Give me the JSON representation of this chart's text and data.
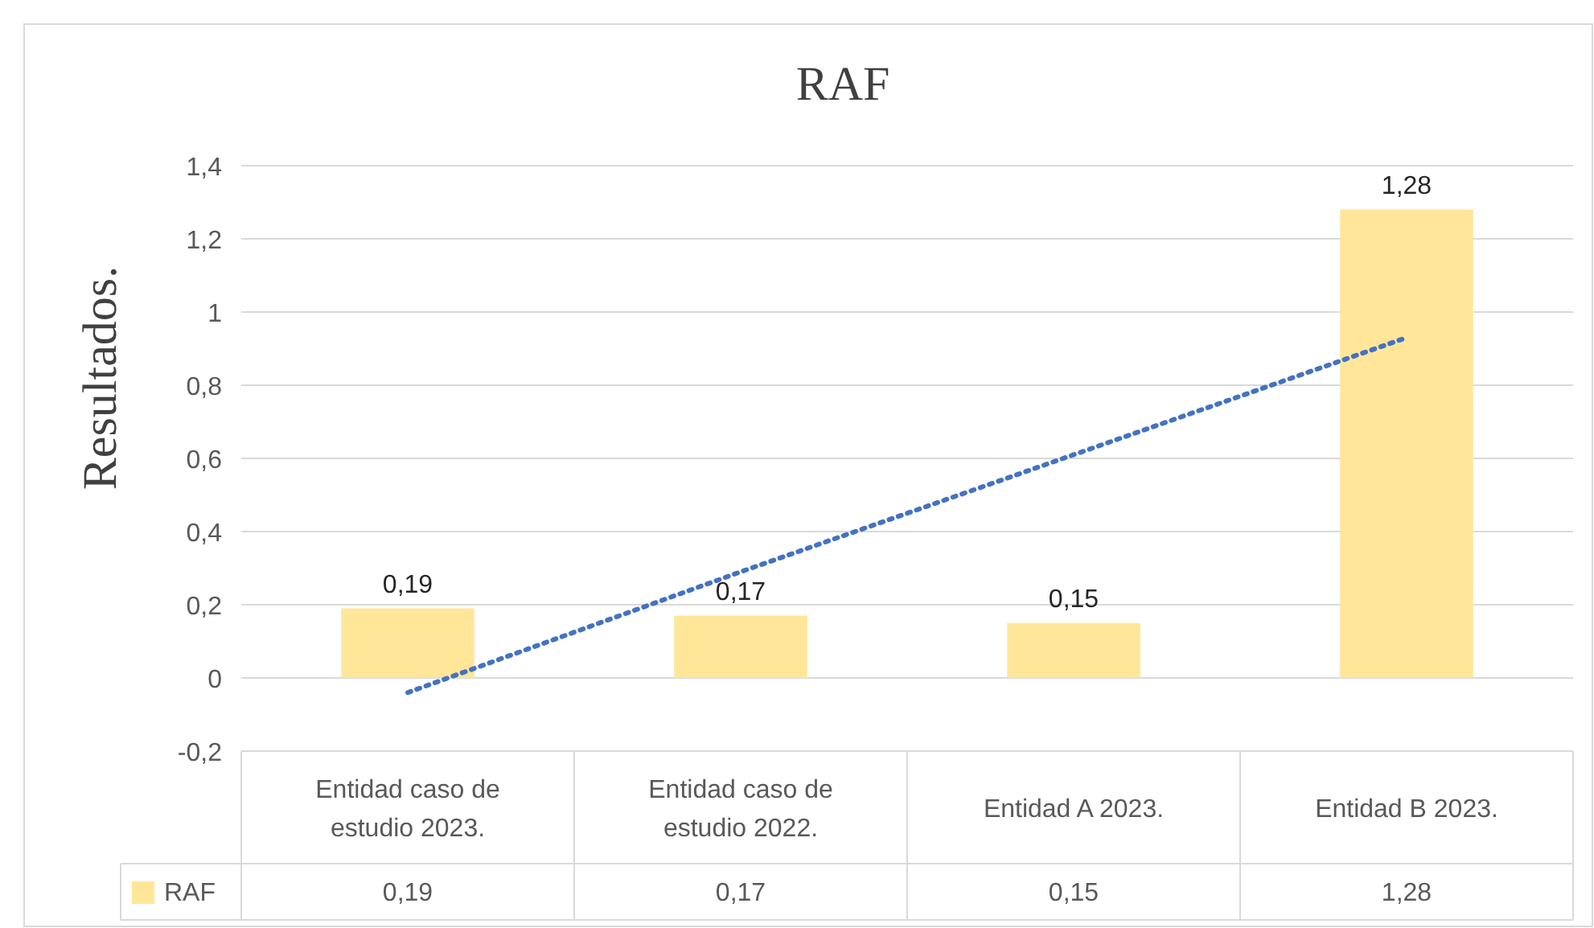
{
  "chart_data": {
    "type": "bar",
    "title": "RAF",
    "ylabel": "Resultados.",
    "categories": [
      "Entidad caso de estudio 2023.",
      "Entidad caso de estudio 2022.",
      "Entidad A 2023.",
      "Entidad B 2023."
    ],
    "series": [
      {
        "name": "RAF",
        "color": "#ffe699",
        "values": [
          0.19,
          0.17,
          0.15,
          1.28
        ],
        "value_labels": [
          "0,19",
          "0,17",
          "0,15",
          "1,28"
        ]
      },
      {
        "type": "line",
        "color": "#4472c4",
        "line_style": "dotted",
        "values": [
          -0.04,
          0.29,
          0.61,
          0.93
        ]
      }
    ],
    "ylim": [
      -0.2,
      1.4
    ],
    "yticks": [
      {
        "value": -0.2,
        "label": "-0,2"
      },
      0,
      {
        "value": 0.2,
        "label": "0,2"
      },
      {
        "value": 0.4,
        "label": "0,4"
      },
      {
        "value": 0.6,
        "label": "0,6"
      },
      {
        "value": 0.8,
        "label": "0,8"
      },
      1,
      {
        "value": 1.2,
        "label": "1,2"
      },
      {
        "value": 1.4,
        "label": "1,4"
      }
    ],
    "grid": "y",
    "legend": "bottom"
  }
}
